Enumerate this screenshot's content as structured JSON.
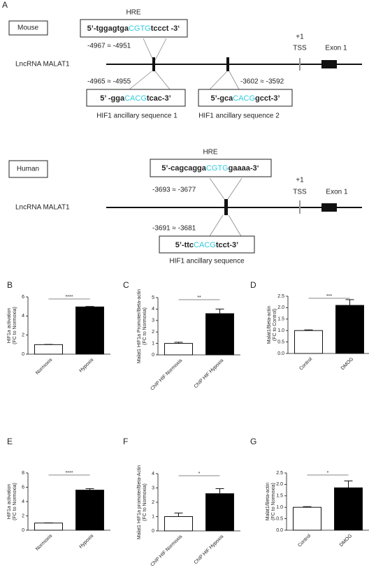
{
  "panel_label": "A",
  "mouse": {
    "species": "Mouse",
    "hre_title": "HRE",
    "hre_seq": {
      "prefix": "5’-tggagtga",
      "core": "CGTG",
      "suffix": "tccct -3‘"
    },
    "hre_pos": "-4967 ≈ -4951",
    "gene": "LncRNA MALAT1",
    "tss_num": "+1",
    "tss": "TSS",
    "exon": "Exon 1",
    "anc1_pos": "-4965 ≈ -4955",
    "anc1_seq": {
      "prefix": "5’ -gga",
      "core": "CACG",
      "suffix": "tcac-3’"
    },
    "anc1_name": "HIF1 ancillary sequence 1",
    "anc2_pos": "-3602 ≈ -3592",
    "anc2_seq": {
      "prefix": "5’-gca",
      "core": "CACG",
      "suffix": "gcct-3’"
    },
    "anc2_name": "HIF1 ancillary sequence 2"
  },
  "human": {
    "species": "Human",
    "hre_title": "HRE",
    "hre_seq": {
      "prefix": "5’-cagcagga",
      "core": "CGTG",
      "suffix": "gaaaa-3‘"
    },
    "hre_pos": "-3693 ≈ -3677",
    "gene": "LncRNA MALAT1",
    "tss_num": "+1",
    "tss": "TSS",
    "exon": "Exon 1",
    "anc_pos": "-3691 ≈ -3681",
    "anc_seq": {
      "prefix": "5’-ttc",
      "core": "CACG",
      "suffix": "tcct-3’"
    },
    "anc_name": "HIF1 ancillary sequence"
  },
  "chart_data": [
    {
      "type": "bar",
      "panel_label": "B",
      "ylabel": [
        "HIF1a activation",
        "(FC to Normoxia)"
      ],
      "categories": [
        "Normoxia",
        "Hypoxia"
      ],
      "values": [
        1,
        4.95
      ],
      "errors": [
        0.02,
        0.05
      ],
      "colors": [
        "#ffffff",
        "#000000"
      ],
      "ylim": [
        0,
        6
      ],
      "yticks": [
        0,
        2,
        4,
        6
      ],
      "significance": "****"
    },
    {
      "type": "bar",
      "panel_label": "C",
      "ylabel": [
        "Malat1 HIF1a Promoter/Beta-actin",
        "(FC to Normoxia)"
      ],
      "categories": [
        "ChIP HIF Normoxia",
        "ChIP HIF Hypoxia"
      ],
      "values": [
        1,
        3.6
      ],
      "errors": [
        0.1,
        0.4
      ],
      "colors": [
        "#ffffff",
        "#000000"
      ],
      "ylim": [
        0,
        5
      ],
      "yticks": [
        0,
        1,
        2,
        3,
        4,
        5
      ],
      "significance": "**"
    },
    {
      "type": "bar",
      "panel_label": "D",
      "ylabel": [
        "Malat1/Beta-actin",
        "(FC to Control)"
      ],
      "categories": [
        "Control",
        "DMOG"
      ],
      "values": [
        1,
        2.1
      ],
      "errors": [
        0.03,
        0.25
      ],
      "colors": [
        "#ffffff",
        "#000000"
      ],
      "ylim": [
        0,
        2.5
      ],
      "yticks": [
        {
          "value": 0,
          "label": "0.0"
        },
        0.5,
        {
          "value": 1,
          "label": "1.0"
        },
        1.5,
        {
          "value": 2,
          "label": "2.0"
        },
        2.5
      ],
      "significance": "***"
    },
    {
      "type": "bar",
      "panel_label": "E",
      "ylabel": [
        "HIF1a activation",
        "(FC to Normoxia)"
      ],
      "categories": [
        "Normoxia",
        "Hypoxia"
      ],
      "values": [
        1,
        5.6
      ],
      "errors": [
        0.02,
        0.2
      ],
      "colors": [
        "#ffffff",
        "#000000"
      ],
      "ylim": [
        0,
        8
      ],
      "yticks": [
        0,
        2,
        4,
        6,
        8
      ],
      "significance": "****"
    },
    {
      "type": "bar",
      "panel_label": "F",
      "ylabel": [
        "Malat1 HIF1a promoter/Beta-Actin",
        "(FC to Normoxia)"
      ],
      "categories": [
        "ChIP HIF Normoxia",
        "ChIP HIF Hypoxia"
      ],
      "values": [
        1,
        2.6
      ],
      "errors": [
        0.25,
        0.35
      ],
      "colors": [
        "#ffffff",
        "#000000"
      ],
      "ylim": [
        0,
        4
      ],
      "yticks": [
        0,
        1,
        2,
        3,
        4
      ],
      "significance": "*"
    },
    {
      "type": "bar",
      "panel_label": "G",
      "ylabel": [
        "Malat1/Beta-actin",
        "(FC to Normoxia)"
      ],
      "categories": [
        "Control",
        "DMOG"
      ],
      "values": [
        1,
        1.85
      ],
      "errors": [
        0.03,
        0.3
      ],
      "colors": [
        "#ffffff",
        "#000000"
      ],
      "ylim": [
        0,
        2.5
      ],
      "yticks": [
        {
          "value": 0,
          "label": "0.0"
        },
        0.5,
        {
          "value": 1,
          "label": "1.0"
        },
        1.5,
        {
          "value": 2,
          "label": "2.0"
        },
        2.5
      ],
      "significance": "*"
    }
  ]
}
